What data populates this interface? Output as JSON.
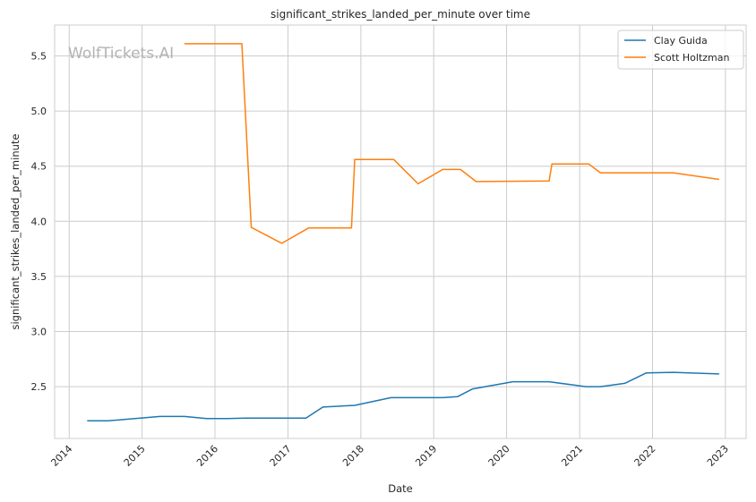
{
  "chart_data": {
    "type": "line",
    "title": "significant_strikes_landed_per_minute over time",
    "xlabel": "Date",
    "ylabel": "significant_strikes_landed_per_minute",
    "watermark": "WolfTickets.AI",
    "x_ticks": [
      "2014",
      "2015",
      "2016",
      "2017",
      "2018",
      "2019",
      "2020",
      "2021",
      "2022",
      "2023"
    ],
    "y_ticks": [
      "2.5",
      "3.0",
      "3.5",
      "4.0",
      "4.5",
      "5.0",
      "5.5"
    ],
    "xlim": [
      "2013-10-20",
      "2023-04-15"
    ],
    "ylim": [
      2.03,
      5.78
    ],
    "grid": true,
    "legend_position": "top-right",
    "series": [
      {
        "name": "Clay Guida",
        "color": "#1f77b4",
        "points": [
          [
            "2014-04-01",
            2.19
          ],
          [
            "2014-07-15",
            2.19
          ],
          [
            "2015-04-01",
            2.23
          ],
          [
            "2015-08-01",
            2.23
          ],
          [
            "2015-11-20",
            2.21
          ],
          [
            "2016-03-01",
            2.21
          ],
          [
            "2016-06-01",
            2.215
          ],
          [
            "2017-04-01",
            2.215
          ],
          [
            "2017-06-25",
            2.315
          ],
          [
            "2017-12-01",
            2.33
          ],
          [
            "2018-06-01",
            2.4
          ],
          [
            "2019-02-15",
            2.4
          ],
          [
            "2019-05-01",
            2.41
          ],
          [
            "2019-07-15",
            2.48
          ],
          [
            "2020-02-01",
            2.545
          ],
          [
            "2020-08-01",
            2.545
          ],
          [
            "2021-02-01",
            2.5
          ],
          [
            "2021-04-15",
            2.5
          ],
          [
            "2021-08-15",
            2.53
          ],
          [
            "2021-12-01",
            2.625
          ],
          [
            "2022-04-15",
            2.63
          ],
          [
            "2022-12-01",
            2.615
          ]
        ]
      },
      {
        "name": "Scott Holtzman",
        "color": "#ff7f0e",
        "points": [
          [
            "2015-08-01",
            5.61
          ],
          [
            "2016-05-15",
            5.61
          ],
          [
            "2016-07-01",
            3.945
          ],
          [
            "2016-12-01",
            3.8
          ],
          [
            "2017-04-15",
            3.94
          ],
          [
            "2017-11-15",
            3.94
          ],
          [
            "2017-12-01",
            4.56
          ],
          [
            "2018-06-15",
            4.56
          ],
          [
            "2018-10-15",
            4.34
          ],
          [
            "2019-02-15",
            4.47
          ],
          [
            "2019-05-15",
            4.47
          ],
          [
            "2019-08-01",
            4.36
          ],
          [
            "2020-08-01",
            4.365
          ],
          [
            "2020-08-15",
            4.52
          ],
          [
            "2021-02-15",
            4.52
          ],
          [
            "2021-04-15",
            4.44
          ],
          [
            "2022-04-15",
            4.44
          ],
          [
            "2022-12-01",
            4.38
          ]
        ]
      }
    ]
  }
}
